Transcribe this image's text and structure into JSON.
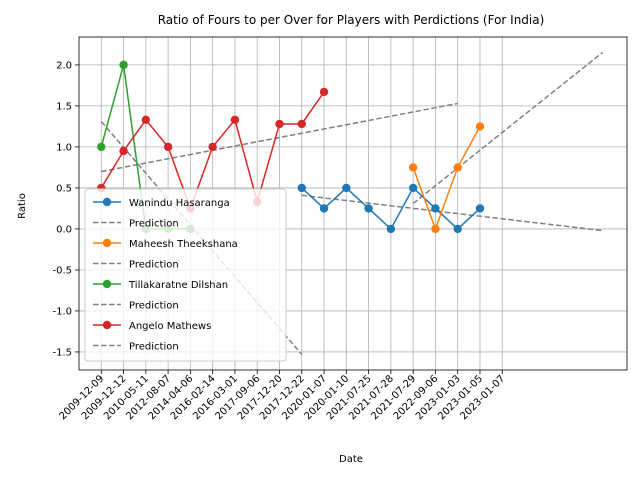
{
  "chart_data": {
    "type": "line",
    "title": "Ratio of Fours to per Over for Players with Perdictions (For India)",
    "xlabel": "Date",
    "ylabel": "Ratio",
    "x_categories": [
      "2009-12-09",
      "2009-12-12",
      "2010-05-11",
      "2012-08-07",
      "2014-04-06",
      "2016-02-14",
      "2016-03-01",
      "2017-09-06",
      "2017-12-20",
      "2017-12-22",
      "2020-01-07",
      "2020-01-10",
      "2021-07-25",
      "2021-07-28",
      "2021-07-29",
      "2022-09-06",
      "2023-01-03",
      "2023-01-05",
      "2023-01-07"
    ],
    "ylim": [
      -1.72,
      2.34
    ],
    "yticks": [
      "-1.5",
      "-1.0",
      "-0.5",
      "0.0",
      "0.5",
      "1.0",
      "1.5",
      "2.0"
    ],
    "grid": true,
    "legend_position": "lower left",
    "series": [
      {
        "name": "Wanindu Hasaranga",
        "color": "#1f77b4",
        "x": [
          10,
          11,
          12,
          13,
          14,
          15,
          16,
          17,
          18
        ],
        "y": [
          0.5,
          0.25,
          0.5,
          0.25,
          0.0,
          0.5,
          0.25,
          0.0,
          0.25
        ],
        "prediction": {
          "name": "Prediction",
          "x": [
            10,
            23.5
          ],
          "y": [
            0.41,
            -0.02
          ]
        }
      },
      {
        "name": "Maheesh Theekshana",
        "color": "#ff7f0e",
        "x": [
          15,
          16,
          17,
          18
        ],
        "y": [
          0.75,
          0.0,
          0.75,
          1.25
        ],
        "prediction": {
          "name": "Prediction",
          "x": [
            15,
            23.5
          ],
          "y": [
            0.31,
            2.15
          ]
        }
      },
      {
        "name": "Tillakaratne Dilshan",
        "color": "#2ca02c",
        "x": [
          1,
          2,
          3,
          4,
          5
        ],
        "y": [
          1.0,
          2.0,
          0.0,
          0.0,
          0.0
        ],
        "prediction": {
          "name": "Prediction",
          "x": [
            1,
            10
          ],
          "y": [
            1.31,
            -1.53
          ]
        }
      },
      {
        "name": "Angelo Mathews",
        "color": "#d62728",
        "x": [
          1,
          2,
          3,
          4,
          5,
          6,
          7,
          8,
          9,
          10,
          11
        ],
        "y": [
          0.5,
          0.95,
          1.33,
          1.0,
          0.25,
          1.0,
          1.33,
          0.33,
          1.28,
          1.28,
          1.67
        ],
        "prediction": {
          "name": "Prediction",
          "x": [
            1,
            17
          ],
          "y": [
            0.7,
            1.53
          ]
        }
      }
    ]
  }
}
